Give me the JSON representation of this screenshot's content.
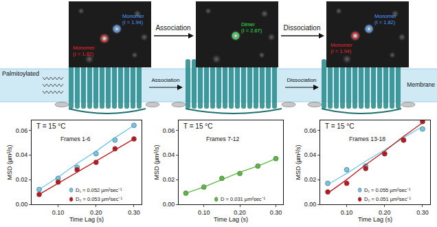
{
  "images": [
    {
      "spots": [
        {
          "name": "Monomer",
          "intensity": "(I = 1.94)",
          "color": "#4a9bff"
        },
        {
          "name": "Monomer",
          "intensity": "(I = 1.82)",
          "color": "#e8262b"
        }
      ]
    },
    {
      "spots": [
        {
          "name": "Dimer",
          "intensity": "(I = 2.67)",
          "color": "#33e04f"
        }
      ]
    },
    {
      "spots": [
        {
          "name": "Monomer",
          "intensity": "(I = 1.94)",
          "color": "#e8262b"
        },
        {
          "name": "Monomer",
          "intensity": "(I = 1.82)",
          "color": "#4a9bff"
        }
      ]
    }
  ],
  "steps": [
    "Association",
    "Dissociation"
  ],
  "membrane": {
    "lipid_label": "Palmitoylated",
    "label": "Membrane",
    "steps": [
      "Association",
      "Dissociation"
    ]
  },
  "chart_data": [
    {
      "type": "scatter",
      "title": "T = 15 °C",
      "subtitle": "Frames 1-6",
      "x_label": "Time Lag (s)",
      "y_label": "MSD (µm²/s)",
      "x": [
        0.05,
        0.1,
        0.15,
        0.2,
        0.25,
        0.3
      ],
      "xlim": [
        0.03,
        0.32
      ],
      "xticks": [
        {
          "value": 0.1,
          "label": "0.10"
        },
        {
          "value": 0.2,
          "label": "0.20"
        },
        {
          "value": 0.3,
          "label": "0.30"
        }
      ],
      "ylim": [
        0,
        0.068
      ],
      "yticks": [
        {
          "value": 0,
          "label": "0.00"
        },
        {
          "value": 0.02,
          "label": "0.02"
        },
        {
          "value": 0.04,
          "label": "0.04"
        },
        {
          "value": 0.06,
          "label": "0.06"
        }
      ],
      "grid": false,
      "legend": "lower right",
      "series": [
        {
          "name": "D₁ = 0.052 µm²sec⁻¹",
          "color": "#6ec6e8",
          "marker": "circle",
          "line_style": "solid",
          "values": [
            0.012,
            0.021,
            0.03,
            0.041,
            0.052,
            0.064
          ],
          "fit": [
            0.012,
            0.022,
            0.033,
            0.043,
            0.054,
            0.064
          ]
        },
        {
          "name": "D₂ = 0.053 µm²sec⁻¹",
          "color": "#c0141c",
          "marker": "circle",
          "line_style": "solid",
          "values": [
            0.008,
            0.018,
            0.028,
            0.034,
            0.045,
            0.053
          ],
          "fit": [
            0.008,
            0.017,
            0.026,
            0.035,
            0.044,
            0.053
          ]
        }
      ]
    },
    {
      "type": "scatter",
      "title": "T = 15 °C",
      "subtitle": "Frames 7-12",
      "x_label": "Time Lag (s)",
      "y_label": "MSD (µm²/s)",
      "x": [
        0.05,
        0.1,
        0.15,
        0.2,
        0.25,
        0.3
      ],
      "xlim": [
        0.03,
        0.32
      ],
      "xticks": [
        {
          "value": 0.1,
          "label": "0.10"
        },
        {
          "value": 0.2,
          "label": "0.20"
        },
        {
          "value": 0.3,
          "label": "0.30"
        }
      ],
      "ylim": [
        0,
        0.068
      ],
      "yticks": [
        {
          "value": 0,
          "label": "0.00"
        },
        {
          "value": 0.02,
          "label": "0.02"
        },
        {
          "value": 0.04,
          "label": "0.04"
        },
        {
          "value": 0.06,
          "label": "0.06"
        }
      ],
      "grid": false,
      "legend": "lower right",
      "series": [
        {
          "name": "D = 0.031 µm²sec⁻¹",
          "color": "#5db840",
          "marker": "circle",
          "line_style": "solid",
          "values": [
            0.009,
            0.014,
            0.021,
            0.025,
            0.031,
            0.037
          ],
          "fit": [
            0.009,
            0.014,
            0.02,
            0.026,
            0.031,
            0.037
          ]
        }
      ]
    },
    {
      "type": "scatter",
      "title": "T = 15 °C",
      "subtitle": "Frames 13-18",
      "x_label": "Time Lag (s)",
      "y_label": "MSD (µm²/s)",
      "x": [
        0.05,
        0.1,
        0.15,
        0.2,
        0.25,
        0.3
      ],
      "xlim": [
        0.03,
        0.32
      ],
      "xticks": [
        {
          "value": 0.1,
          "label": "0.10"
        },
        {
          "value": 0.2,
          "label": "0.20"
        },
        {
          "value": 0.3,
          "label": "0.30"
        }
      ],
      "ylim": [
        0,
        0.068
      ],
      "yticks": [
        {
          "value": 0,
          "label": "0.00"
        },
        {
          "value": 0.02,
          "label": "0.02"
        },
        {
          "value": 0.04,
          "label": "0.04"
        },
        {
          "value": 0.06,
          "label": "0.06"
        }
      ],
      "grid": false,
      "legend": "lower right",
      "series": [
        {
          "name": "D₁ = 0.055 µm²sec⁻¹",
          "color": "#6ec6e8",
          "marker": "circle",
          "line_style": "solid",
          "values": [
            0.017,
            0.028,
            0.031,
            0.041,
            0.052,
            0.061
          ],
          "fit": [
            0.016,
            0.025,
            0.035,
            0.044,
            0.054,
            0.063
          ]
        },
        {
          "name": "D₂ = 0.051 µm²sec⁻¹",
          "color": "#c0141c",
          "marker": "circle",
          "line_style": "solid",
          "values": [
            0.01,
            0.017,
            0.029,
            0.041,
            0.052,
            0.067
          ],
          "fit": [
            0.009,
            0.02,
            0.032,
            0.043,
            0.055,
            0.066
          ]
        }
      ]
    }
  ]
}
